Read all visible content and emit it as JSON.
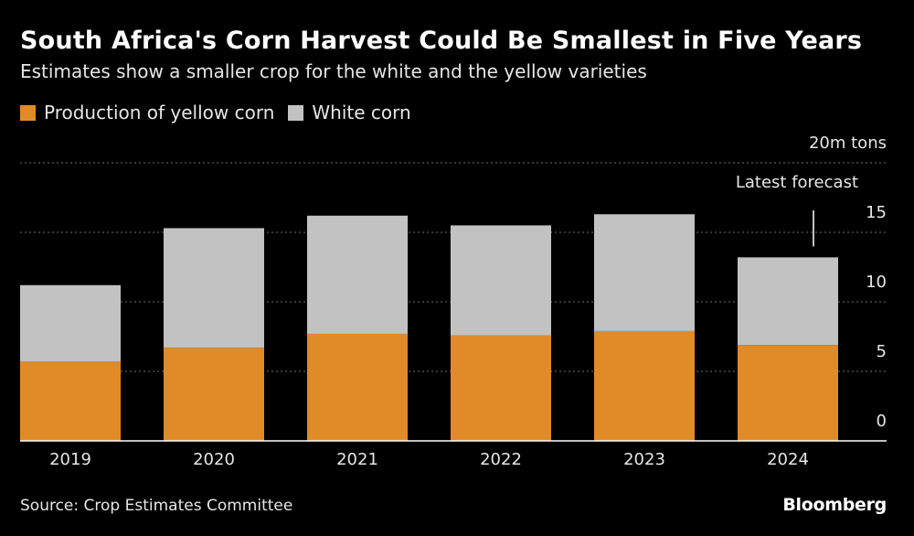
{
  "header": {
    "title": "South Africa's Corn Harvest Could Be Smallest in Five Years",
    "subtitle": "Estimates show a smaller crop for the white and the yellow varieties"
  },
  "footer": {
    "source": "Source: Crop Estimates Committee",
    "brand": "Bloomberg"
  },
  "chart_data": {
    "type": "bar",
    "stacked": true,
    "title": "South Africa's Corn Harvest Could Be Smallest in Five Years",
    "subtitle": "Estimates show a smaller crop for the white and the yellow varieties",
    "categories": [
      "2019",
      "2020",
      "2021",
      "2022",
      "2023",
      "2024"
    ],
    "series": [
      {
        "name": "Production of yellow corn",
        "color": "#e08b27",
        "values": [
          5.7,
          6.7,
          7.7,
          7.6,
          7.9,
          6.9
        ]
      },
      {
        "name": "White corn",
        "color": "#c2c2c2",
        "values": [
          5.5,
          8.6,
          8.5,
          7.9,
          8.4,
          6.3
        ]
      }
    ],
    "y_unit_label": "20m tons",
    "y_ticks": [
      "0",
      "5",
      "10",
      "15"
    ],
    "ylim": [
      0,
      20
    ],
    "grid": true,
    "annotation": {
      "text": "Latest forecast",
      "category": "2024"
    },
    "legend_position": "top-left"
  },
  "colors": {
    "background": "#000000",
    "grid": "#6e6e6e",
    "axis": "#ffffff",
    "annotation_line": "#ffffff"
  }
}
